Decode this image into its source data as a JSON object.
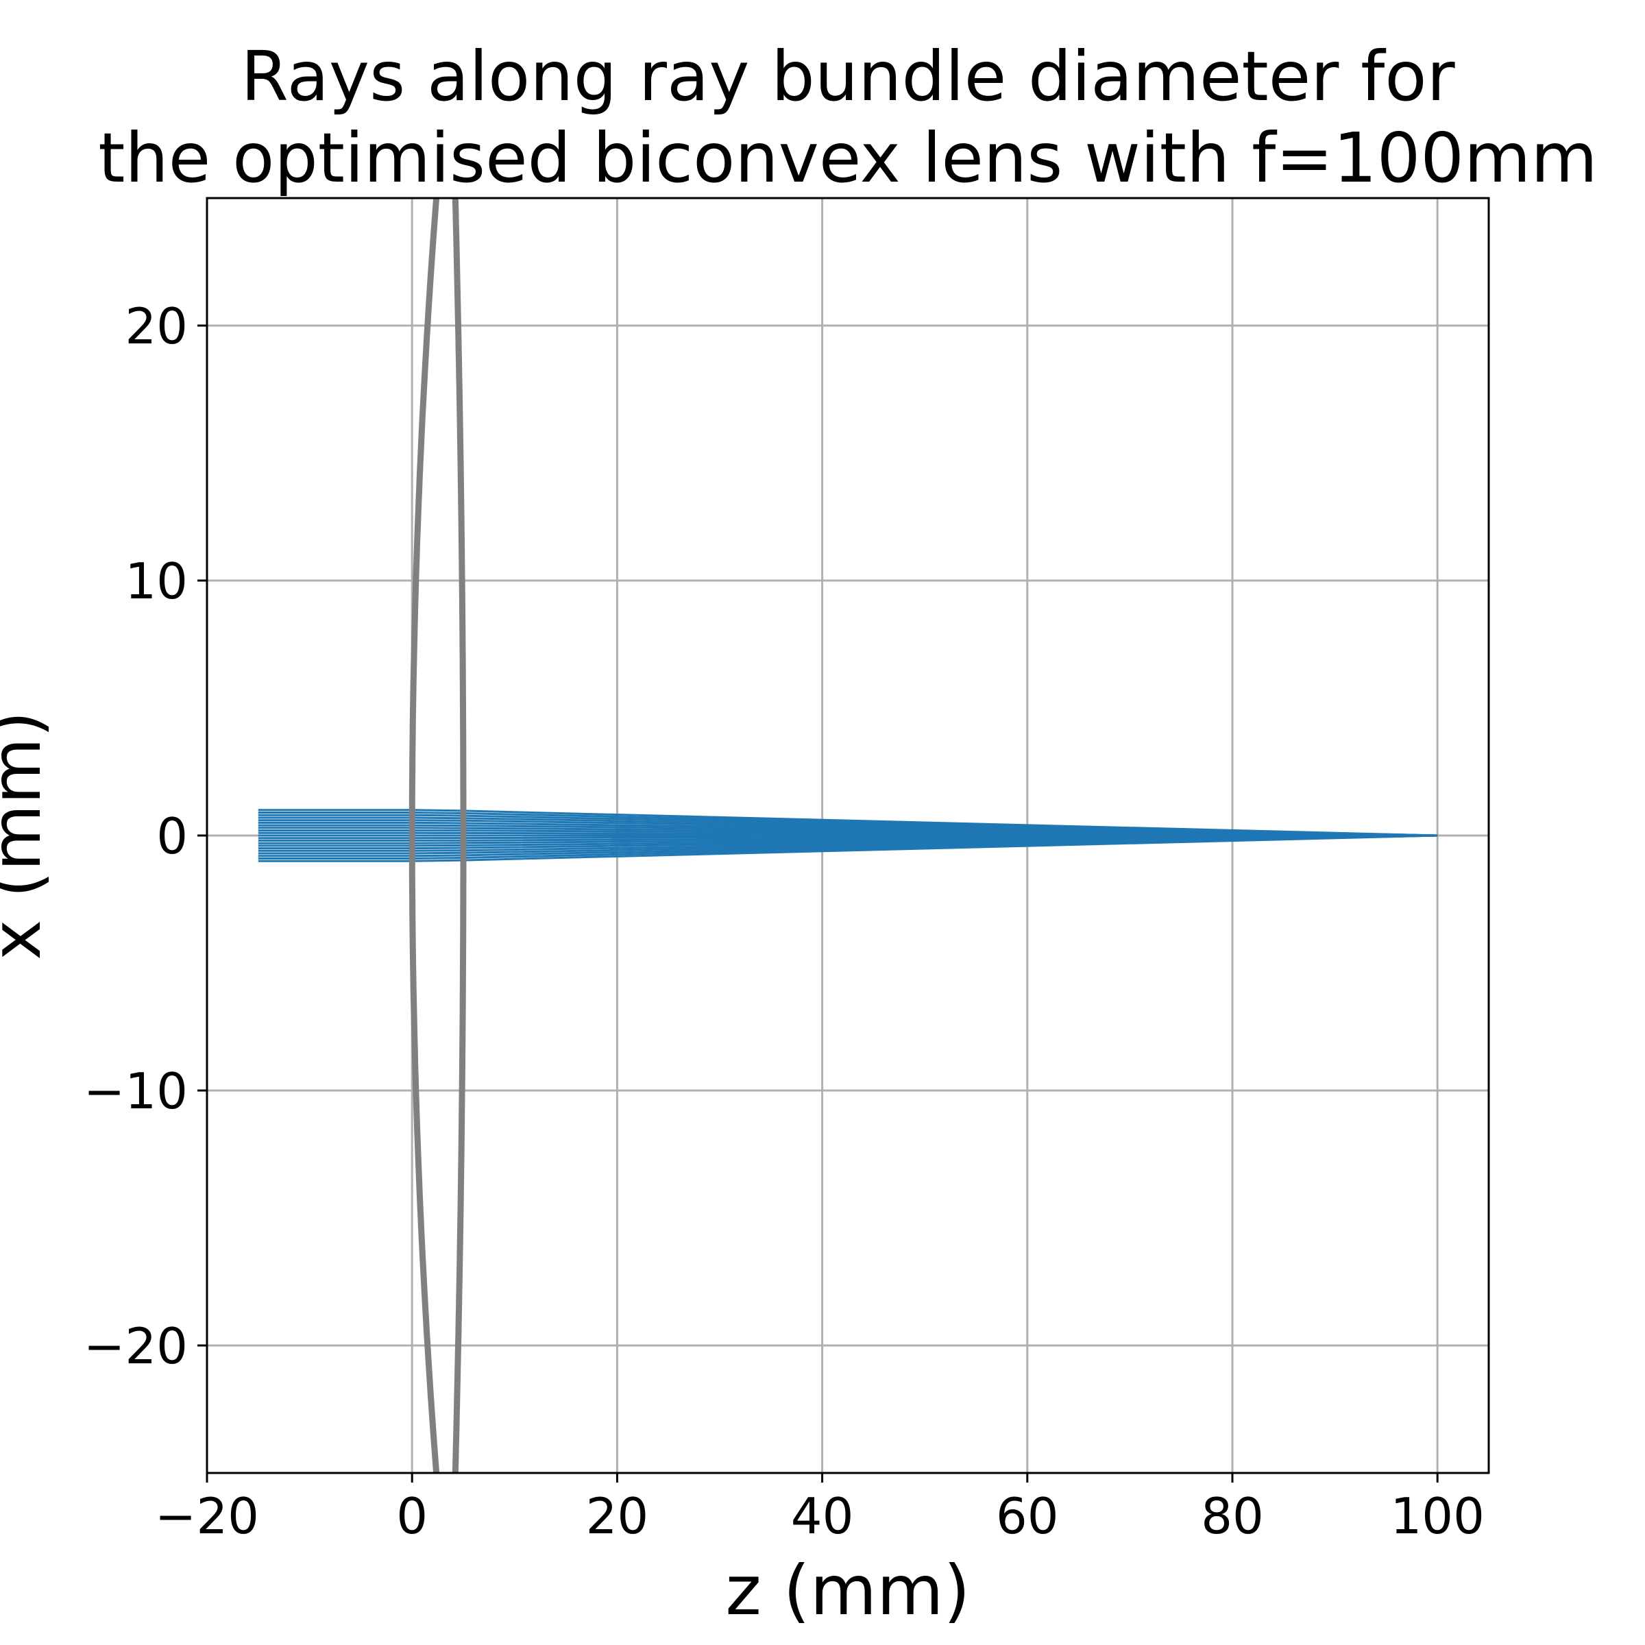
{
  "chart_data": {
    "type": "line",
    "title": "Rays along ray bundle diameter for\nthe optimised biconvex lens with f=100mm",
    "title_lines": [
      "Rays along ray bundle diameter for",
      "the optimised biconvex lens with f=100mm"
    ],
    "xlabel": "z (mm)",
    "ylabel": "x (mm)",
    "xlim": [
      -20,
      105
    ],
    "ylim": [
      -25,
      25
    ],
    "x_ticks": [
      -20,
      0,
      20,
      40,
      60,
      80,
      100
    ],
    "y_ticks": [
      -20,
      -10,
      0,
      10,
      20
    ],
    "x_tick_labels": [
      "−20",
      "0",
      "20",
      "40",
      "60",
      "80",
      "100"
    ],
    "y_tick_labels": [
      "−20",
      "−10",
      "0",
      "10",
      "20"
    ],
    "grid": true,
    "colors": {
      "rays": "#1f77b4",
      "lens": "#808080"
    },
    "lens_surfaces": [
      {
        "name": "front surface",
        "vertex_z": 0,
        "curvature": 0.0075
      },
      {
        "name": "back surface",
        "vertex_z": 5,
        "curvature": -0.0025
      }
    ],
    "ray_bundle": {
      "start_z": -15,
      "focus": [
        100,
        0
      ],
      "heights": [
        -1.0,
        -0.9,
        -0.8,
        -0.7,
        -0.6,
        -0.5,
        -0.4,
        -0.3,
        -0.2,
        -0.1,
        0.0,
        0.1,
        0.2,
        0.3,
        0.4,
        0.5,
        0.6,
        0.7,
        0.8,
        0.9,
        1.0
      ]
    }
  }
}
